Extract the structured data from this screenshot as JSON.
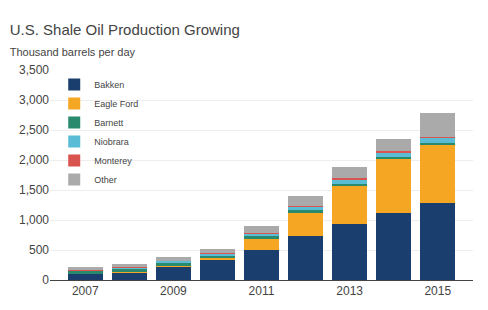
{
  "chart_data": {
    "type": "bar",
    "stacked": true,
    "title": "U.S. Shale Oil Production Growing",
    "subtitle": "Thousand barrels per day",
    "x": [
      2007,
      2008,
      2009,
      2010,
      2011,
      2012,
      2013,
      2014,
      2015
    ],
    "series": [
      {
        "name": "Bakken",
        "color": "#1a3f6f",
        "values": [
          100,
          130,
          225,
          335,
          500,
          730,
          940,
          1110,
          1280
        ]
      },
      {
        "name": "Eagle Ford",
        "color": "#f5a623",
        "values": [
          5,
          8,
          12,
          25,
          180,
          390,
          620,
          900,
          970
        ]
      },
      {
        "name": "Barnett",
        "color": "#2a8a6e",
        "values": [
          45,
          50,
          55,
          55,
          50,
          50,
          45,
          40,
          35
        ]
      },
      {
        "name": "Niobrara",
        "color": "#5bbcd6",
        "values": [
          15,
          20,
          25,
          30,
          40,
          55,
          70,
          80,
          90
        ]
      },
      {
        "name": "Monterey",
        "color": "#d9534f",
        "values": [
          5,
          7,
          8,
          10,
          12,
          15,
          20,
          20,
          15
        ]
      },
      {
        "name": "Other",
        "color": "#aaaaaa",
        "values": [
          40,
          60,
          55,
          70,
          110,
          160,
          185,
          200,
          390
        ]
      }
    ],
    "xlim": [
      2006.2,
      2015.8
    ],
    "xticks": [
      2007,
      2009,
      2011,
      2013,
      2015
    ],
    "ylim": [
      0,
      3500
    ],
    "yticks": [
      0,
      500,
      {
        "value": 1000,
        "label": "1,000"
      },
      {
        "value": 1500,
        "label": "1,500"
      },
      {
        "value": 2000,
        "label": "2,000"
      },
      {
        "value": 2500,
        "label": "2,500"
      },
      {
        "value": 3000,
        "label": "3,000"
      },
      {
        "value": 3500,
        "label": "3,500"
      }
    ],
    "grid": true,
    "legend": "upper left"
  }
}
